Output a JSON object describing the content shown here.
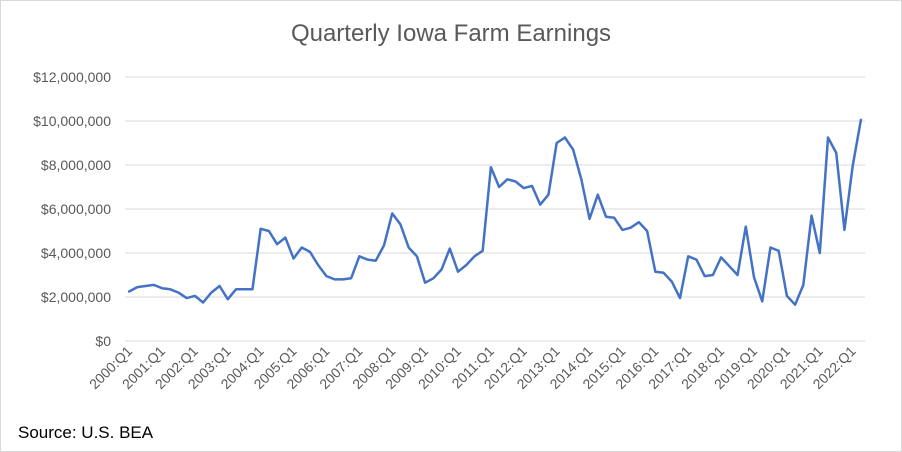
{
  "chart_data": {
    "type": "line",
    "title": "Quarterly Iowa Farm Earnings",
    "source": "Source: U.S. BEA",
    "xlabel": "",
    "ylabel": "",
    "ylim": [
      0,
      12000000
    ],
    "yticks": [
      0,
      2000000,
      4000000,
      6000000,
      8000000,
      10000000,
      12000000
    ],
    "ytick_labels": [
      "$0",
      "$2,000,000",
      "$4,000,000",
      "$6,000,000",
      "$8,000,000",
      "$10,000,000",
      "$12,000,000"
    ],
    "xtick_labels": [
      "2000:Q1",
      "2001:Q1",
      "2002:Q1",
      "2003:Q1",
      "2004:Q1",
      "2005:Q1",
      "2006:Q1",
      "2007:Q1",
      "2008:Q1",
      "2009:Q1",
      "2010:Q1",
      "2011:Q1",
      "2012:Q1",
      "2013:Q1",
      "2014:Q1",
      "2015:Q1",
      "2016:Q1",
      "2017:Q1",
      "2018:Q1",
      "2019:Q1",
      "2020:Q1",
      "2021:Q1",
      "2022:Q1"
    ],
    "grid": true,
    "legend": "none",
    "line_color": "#4472c4",
    "series": [
      {
        "values": [
          2250000,
          2450000,
          2500000,
          2550000,
          2400000,
          2350000,
          2200000,
          1950000,
          2050000,
          1750000,
          2200000,
          2500000,
          1900000,
          2350000,
          2350000,
          2350000,
          5100000,
          5000000,
          4400000,
          4700000,
          3750000,
          4250000,
          4050000,
          3450000,
          2950000,
          2800000,
          2800000,
          2850000,
          3850000,
          3700000,
          3650000,
          4350000,
          5800000,
          5300000,
          4250000,
          3850000,
          2650000,
          2850000,
          3250000,
          4200000,
          3150000,
          3450000,
          3850000,
          4100000,
          7900000,
          7000000,
          7350000,
          7250000,
          6950000,
          7050000,
          6200000,
          6650000,
          9000000,
          9250000,
          8700000,
          7350000,
          5550000,
          6650000,
          5650000,
          5600000,
          5050000,
          5150000,
          5400000,
          5000000,
          3150000,
          3100000,
          2700000,
          1950000,
          3850000,
          3700000,
          2950000,
          3000000,
          3800000,
          3400000,
          3000000,
          5200000,
          2900000,
          1800000,
          4250000,
          4100000,
          2050000,
          1650000,
          2550000,
          5700000,
          4000000,
          9250000,
          8550000,
          5050000,
          7950000,
          10050000
        ]
      }
    ]
  }
}
